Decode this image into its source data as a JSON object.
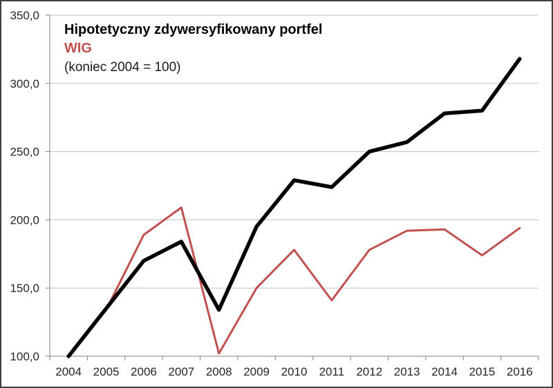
{
  "frame": {
    "background": "#ffffff",
    "border_color": "#3f3f3f"
  },
  "title_block": {
    "line1": "Hipotetyczny zdywersyfikowany portfel",
    "line1_color": "#000000",
    "line2": "WIG",
    "line2_color": "#c0504d",
    "line3": "(koniec 2004 = 100)",
    "line3_color": "#1a1a1a"
  },
  "chart_data": {
    "type": "line",
    "title": "Hipotetyczny zdywersyfikowany portfel",
    "subtitle": "WIG (koniec 2004 = 100)",
    "categories": [
      "2004",
      "2005",
      "2006",
      "2007",
      "2008",
      "2009",
      "2010",
      "2011",
      "2012",
      "2013",
      "2014",
      "2015",
      "2016"
    ],
    "series": [
      {
        "id": "portfolio",
        "name": "Hipotetyczny zdywersyfikowany portfel",
        "color": "#000000",
        "stroke_width": 5.5,
        "values": [
          100,
          135,
          170,
          184,
          134,
          195,
          229,
          224,
          250,
          257,
          278,
          280,
          318
        ]
      },
      {
        "id": "wig",
        "name": "WIG",
        "color": "#c0504d",
        "stroke_width": 3,
        "values": [
          100,
          134,
          189,
          209,
          102,
          150,
          178,
          141,
          178,
          192,
          193,
          174,
          194
        ]
      }
    ],
    "xlabel": "",
    "ylabel": "",
    "ylim": [
      100,
      350
    ],
    "yticks": [
      100,
      150,
      200,
      250,
      300,
      350
    ],
    "ytick_labels": [
      "100,0",
      "150,0",
      "200,0",
      "250,0",
      "300,0",
      "350,0"
    ],
    "grid": "horizontal",
    "legend_position": "inline-title-top-left",
    "grid_color": "#bfbfbf",
    "axis_color": "#808080",
    "tick_label_color": "#262626",
    "tick_label_font_size": 17
  }
}
